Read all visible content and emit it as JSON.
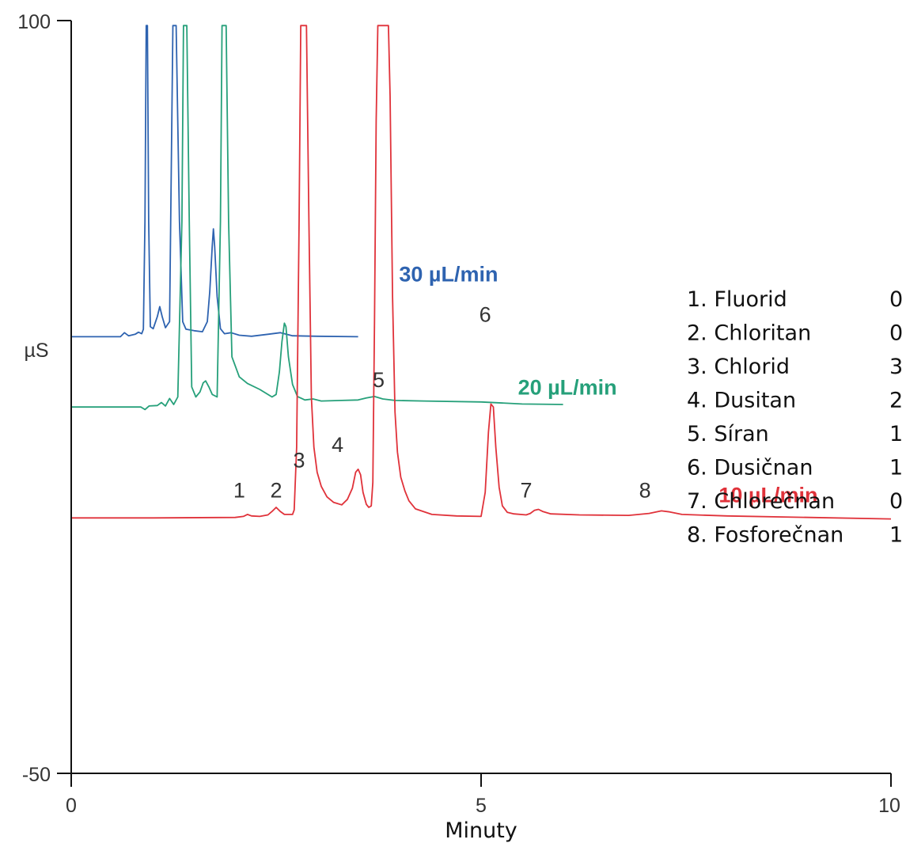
{
  "chart_data": {
    "type": "line",
    "title": "",
    "xlabel": "Minuty",
    "ylabel": "µS",
    "xlim": [
      0,
      10
    ],
    "ylim": [
      -50,
      100
    ],
    "x_ticks": [
      "0",
      "5",
      "10"
    ],
    "y_ticks": [
      "100",
      "-50"
    ],
    "grid": false,
    "series": [
      {
        "name": "30 µL/min",
        "color": "#2e63b0",
        "points": [
          [
            0,
            37
          ],
          [
            0.6,
            37
          ],
          [
            0.65,
            37.8
          ],
          [
            0.7,
            37.2
          ],
          [
            0.78,
            37.5
          ],
          [
            0.82,
            37.9
          ],
          [
            0.86,
            37.6
          ],
          [
            0.88,
            38.5
          ],
          [
            0.9,
            60
          ],
          [
            0.915,
            99
          ],
          [
            0.93,
            99
          ],
          [
            0.945,
            60
          ],
          [
            0.965,
            39
          ],
          [
            1.0,
            38.6
          ],
          [
            1.05,
            41
          ],
          [
            1.08,
            43
          ],
          [
            1.11,
            41
          ],
          [
            1.15,
            38.8
          ],
          [
            1.2,
            40
          ],
          [
            1.24,
            99
          ],
          [
            1.28,
            99
          ],
          [
            1.32,
            60
          ],
          [
            1.36,
            40
          ],
          [
            1.4,
            38.5
          ],
          [
            1.5,
            38.2
          ],
          [
            1.6,
            38
          ],
          [
            1.66,
            40
          ],
          [
            1.69,
            46
          ],
          [
            1.72,
            55
          ],
          [
            1.735,
            58.5
          ],
          [
            1.75,
            55
          ],
          [
            1.78,
            45
          ],
          [
            1.82,
            38.6
          ],
          [
            1.87,
            37.6
          ],
          [
            1.95,
            37.8
          ],
          [
            2.05,
            37.3
          ],
          [
            2.2,
            37.1
          ],
          [
            2.4,
            37.5
          ],
          [
            2.55,
            37.8
          ],
          [
            2.7,
            37.2
          ],
          [
            3.0,
            37.1
          ],
          [
            3.5,
            37
          ]
        ]
      },
      {
        "name": "20 µL/min",
        "color": "#26a07a",
        "points": [
          [
            0,
            23
          ],
          [
            0.85,
            23
          ],
          [
            0.9,
            22.5
          ],
          [
            0.95,
            23.2
          ],
          [
            1.05,
            23.3
          ],
          [
            1.1,
            23.9
          ],
          [
            1.15,
            23.2
          ],
          [
            1.2,
            24.7
          ],
          [
            1.25,
            23.5
          ],
          [
            1.3,
            25
          ],
          [
            1.35,
            60
          ],
          [
            1.37,
            99
          ],
          [
            1.41,
            99
          ],
          [
            1.44,
            60
          ],
          [
            1.47,
            27
          ],
          [
            1.52,
            25
          ],
          [
            1.57,
            26
          ],
          [
            1.61,
            27.8
          ],
          [
            1.64,
            28.2
          ],
          [
            1.68,
            27
          ],
          [
            1.72,
            25.5
          ],
          [
            1.78,
            25
          ],
          [
            1.82,
            60
          ],
          [
            1.84,
            99
          ],
          [
            1.89,
            99
          ],
          [
            1.92,
            60
          ],
          [
            1.96,
            33
          ],
          [
            2.05,
            29
          ],
          [
            2.15,
            27.7
          ],
          [
            2.3,
            26.5
          ],
          [
            2.45,
            25
          ],
          [
            2.5,
            25.5
          ],
          [
            2.54,
            30
          ],
          [
            2.57,
            36
          ],
          [
            2.6,
            39.7
          ],
          [
            2.62,
            39
          ],
          [
            2.65,
            33
          ],
          [
            2.7,
            27.5
          ],
          [
            2.76,
            25.1
          ],
          [
            2.85,
            24.4
          ],
          [
            2.95,
            24.6
          ],
          [
            3.05,
            24.2
          ],
          [
            3.3,
            24.3
          ],
          [
            3.5,
            24.4
          ],
          [
            3.6,
            24.8
          ],
          [
            3.7,
            25.1
          ],
          [
            3.8,
            24.6
          ],
          [
            3.95,
            24.3
          ],
          [
            4.3,
            24.2
          ],
          [
            5.0,
            24.0
          ],
          [
            5.5,
            23.6
          ],
          [
            6.0,
            23.5
          ]
        ]
      },
      {
        "name": "10 µL/min",
        "color": "#e0323a",
        "points": [
          [
            0,
            0.9
          ],
          [
            1.0,
            0.9
          ],
          [
            2.0,
            1.0
          ],
          [
            2.1,
            1.2
          ],
          [
            2.15,
            1.6
          ],
          [
            2.2,
            1.3
          ],
          [
            2.3,
            1.2
          ],
          [
            2.4,
            1.5
          ],
          [
            2.45,
            2.2
          ],
          [
            2.5,
            3.0
          ],
          [
            2.55,
            2.2
          ],
          [
            2.6,
            1.6
          ],
          [
            2.7,
            1.6
          ],
          [
            2.72,
            2.5
          ],
          [
            2.75,
            15
          ],
          [
            2.78,
            60
          ],
          [
            2.8,
            99
          ],
          [
            2.87,
            99
          ],
          [
            2.9,
            60
          ],
          [
            2.93,
            25
          ],
          [
            2.96,
            15
          ],
          [
            3.0,
            10
          ],
          [
            3.05,
            7.2
          ],
          [
            3.12,
            5.1
          ],
          [
            3.2,
            4.0
          ],
          [
            3.3,
            3.5
          ],
          [
            3.37,
            4.6
          ],
          [
            3.43,
            6.8
          ],
          [
            3.47,
            10
          ],
          [
            3.5,
            10.6
          ],
          [
            3.53,
            9.5
          ],
          [
            3.56,
            6
          ],
          [
            3.6,
            3.6
          ],
          [
            3.63,
            3.0
          ],
          [
            3.66,
            3.3
          ],
          [
            3.68,
            8
          ],
          [
            3.7,
            40
          ],
          [
            3.72,
            80
          ],
          [
            3.74,
            99
          ],
          [
            3.87,
            99
          ],
          [
            3.89,
            85
          ],
          [
            3.92,
            45
          ],
          [
            3.95,
            22
          ],
          [
            3.98,
            14
          ],
          [
            4.02,
            9
          ],
          [
            4.07,
            6.3
          ],
          [
            4.12,
            4.3
          ],
          [
            4.2,
            2.7
          ],
          [
            4.4,
            1.6
          ],
          [
            4.7,
            1.3
          ],
          [
            5.0,
            1.2
          ],
          [
            5.05,
            6
          ],
          [
            5.09,
            18
          ],
          [
            5.12,
            23.6
          ],
          [
            5.15,
            23
          ],
          [
            5.18,
            15
          ],
          [
            5.22,
            7
          ],
          [
            5.26,
            3.3
          ],
          [
            5.32,
            2.0
          ],
          [
            5.4,
            1.7
          ],
          [
            5.55,
            1.5
          ],
          [
            5.6,
            1.8
          ],
          [
            5.65,
            2.4
          ],
          [
            5.7,
            2.6
          ],
          [
            5.75,
            2.2
          ],
          [
            5.85,
            1.7
          ],
          [
            6.2,
            1.5
          ],
          [
            6.8,
            1.4
          ],
          [
            7.05,
            1.8
          ],
          [
            7.2,
            2.3
          ],
          [
            7.3,
            2.1
          ],
          [
            7.45,
            1.6
          ],
          [
            8.0,
            1.3
          ],
          [
            9.0,
            1.0
          ],
          [
            10.0,
            0.7
          ]
        ]
      }
    ],
    "peak_labels": [
      {
        "text": "1",
        "x": 2.05,
        "y": 5
      },
      {
        "text": "2",
        "x": 2.5,
        "y": 5
      },
      {
        "text": "3",
        "x": 2.78,
        "y": 11
      },
      {
        "text": "4",
        "x": 3.25,
        "y": 14
      },
      {
        "text": "5",
        "x": 3.75,
        "y": 27
      },
      {
        "text": "6",
        "x": 5.05,
        "y": 40
      },
      {
        "text": "7",
        "x": 5.55,
        "y": 5
      },
      {
        "text": "8",
        "x": 7.0,
        "y": 5
      }
    ],
    "series_labels": [
      {
        "text": "30 µL/min",
        "color": "#2e63b0",
        "x": 4.0,
        "y": 48
      },
      {
        "text": "20 µL/min",
        "color": "#26a07a",
        "x": 5.45,
        "y": 25.5
      },
      {
        "text": "10 µL/min",
        "color": "#e0323a",
        "x": 7.9,
        "y": 4
      }
    ],
    "legend": {
      "position": "right",
      "items": [
        {
          "name": "1. Fluorid",
          "value": "0"
        },
        {
          "name": "2. Chloritan",
          "value": "0"
        },
        {
          "name": "3. Chlorid",
          "value": "3"
        },
        {
          "name": "4. Dusitan",
          "value": "2"
        },
        {
          "name": "5. Síran",
          "value": "1"
        },
        {
          "name": "6. Dusičnan",
          "value": "1"
        },
        {
          "name": "7. Chlorečnan",
          "value": "0"
        },
        {
          "name": "8. Fosforečnan",
          "value": "1"
        }
      ]
    }
  }
}
